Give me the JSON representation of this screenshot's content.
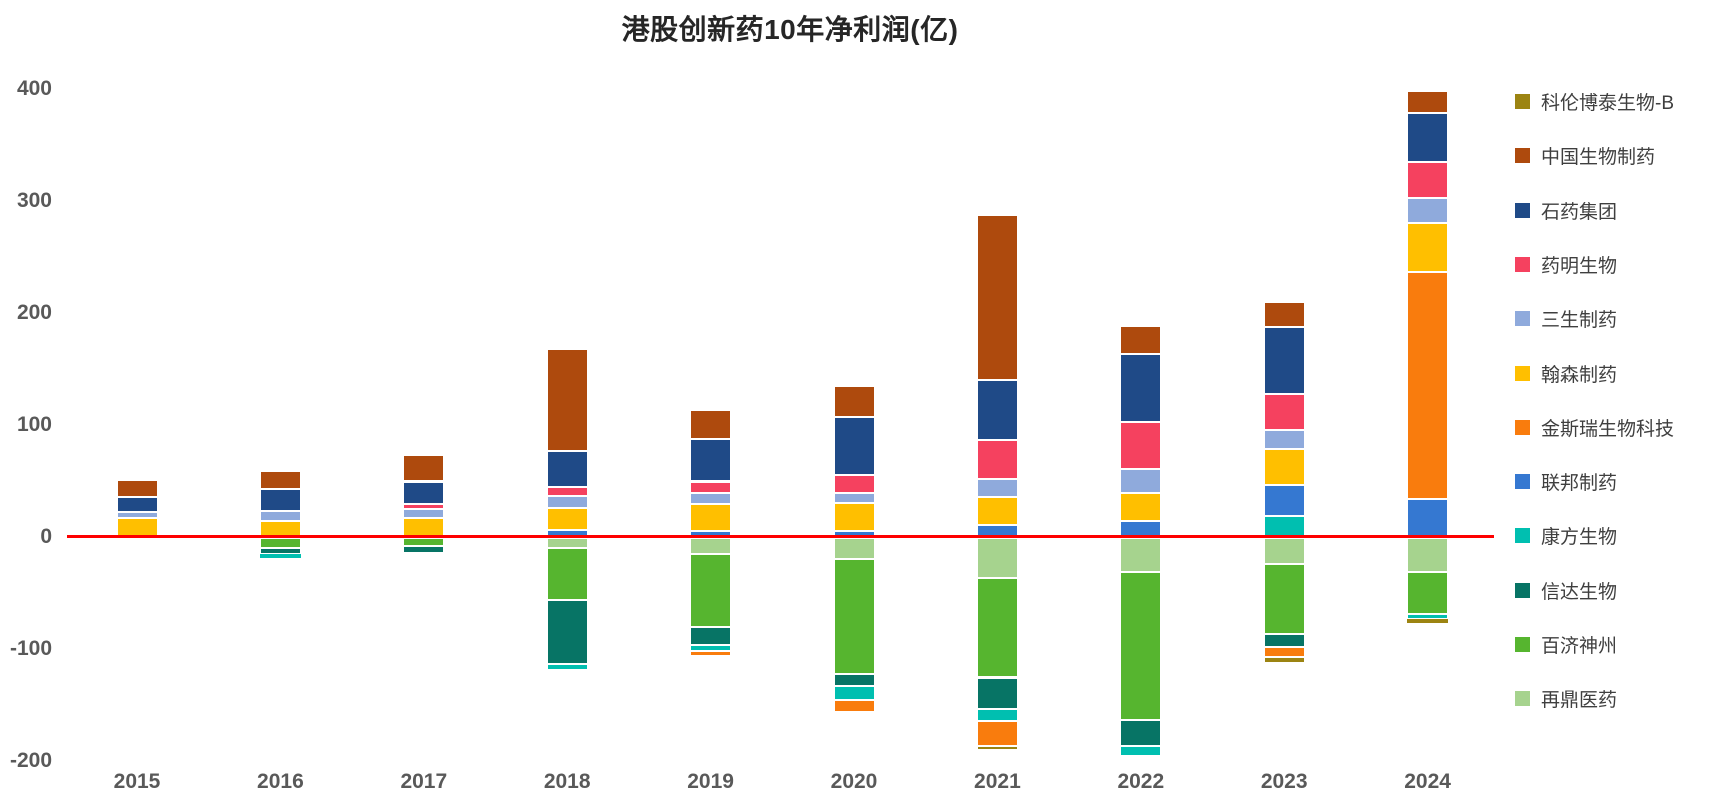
{
  "title": "港股创新药10年净利润(亿)",
  "colors": {
    "background": "#FFFFFF",
    "zero_line": "#FE0000",
    "title_text": "#262626",
    "axis_text": "#595959",
    "legend_text": "#3F3F3F",
    "segment_border": "#FFFFFF"
  },
  "y_axis": {
    "ticks": [
      400,
      300,
      200,
      100,
      0,
      -100,
      -200
    ],
    "min": -200,
    "max": 400
  },
  "legend": [
    {
      "label": "科伦博泰生物-B",
      "color": "#9C8412"
    },
    {
      "label": "中国生物制药",
      "color": "#AE4A0D"
    },
    {
      "label": "石药集团",
      "color": "#1F4A87"
    },
    {
      "label": "药明生物",
      "color": "#F5415F"
    },
    {
      "label": "三生制药",
      "color": "#8FAADC"
    },
    {
      "label": "翰森制药",
      "color": "#FFBF00"
    },
    {
      "label": "金斯瑞生物科技",
      "color": "#F97C0D"
    },
    {
      "label": "联邦制药",
      "color": "#3578D1"
    },
    {
      "label": "康方生物",
      "color": "#00BFB0"
    },
    {
      "label": "信达生物",
      "color": "#077465"
    },
    {
      "label": "百济神州",
      "color": "#56B52F"
    },
    {
      "label": "再鼎医药",
      "color": "#A6D38E"
    }
  ],
  "chart_data": {
    "type": "bar",
    "subtype": "stacked-column",
    "title": "港股创新药10年净利润(亿)",
    "xlabel": "",
    "ylabel": "",
    "ylim": [
      -200,
      400
    ],
    "grid": false,
    "legend_position": "right",
    "categories": [
      "2015",
      "2016",
      "2017",
      "2018",
      "2019",
      "2020",
      "2021",
      "2022",
      "2023",
      "2024"
    ],
    "series": [
      {
        "name": "科伦博泰生物-B",
        "color": "#9C8412",
        "values": [
          0,
          0,
          0,
          0,
          0,
          0,
          -4,
          0,
          -5,
          -3
        ]
      },
      {
        "name": "中国生物制药",
        "color": "#AE4A0D",
        "values": [
          15,
          16,
          24,
          91,
          26,
          27,
          147,
          25,
          22,
          20
        ]
      },
      {
        "name": "石药集团",
        "color": "#1F4A87",
        "values": [
          13,
          20,
          20,
          32,
          38,
          52,
          54,
          61,
          60,
          44
        ]
      },
      {
        "name": "药明生物",
        "color": "#F5415F",
        "values": [
          0,
          0,
          4.5,
          8,
          10,
          16,
          35,
          42,
          32,
          32
        ]
      },
      {
        "name": "三生制药",
        "color": "#8FAADC",
        "values": [
          6,
          8.5,
          8.5,
          11,
          10,
          9,
          16,
          21,
          17,
          22
        ]
      },
      {
        "name": "翰森制药",
        "color": "#FFBF00",
        "values": [
          17,
          15,
          17,
          19,
          24,
          25,
          25,
          25,
          32,
          44
        ]
      },
      {
        "name": "金斯瑞生物科技",
        "color": "#F97C0D",
        "values": [
          0,
          0,
          0,
          0,
          -5,
          -11,
          -22,
          0,
          -9,
          203
        ]
      },
      {
        "name": "联邦制药",
        "color": "#3578D1",
        "values": [
          0,
          0,
          0,
          7,
          6,
          6,
          11,
          15,
          28,
          34
        ]
      },
      {
        "name": "康方生物",
        "color": "#00BFB0",
        "values": [
          0,
          -3,
          0,
          -5,
          -5,
          -12,
          -11,
          -9,
          19,
          -5
        ]
      },
      {
        "name": "信达生物",
        "color": "#077465",
        "values": [
          0,
          -6,
          -6,
          -57,
          -16,
          -11,
          -28,
          -23,
          -12,
          0
        ]
      },
      {
        "name": "百济神州",
        "color": "#56B52F",
        "values": [
          0,
          -9,
          -8,
          -47,
          -65,
          -103,
          -89,
          -132,
          -62,
          -37
        ]
      },
      {
        "name": "再鼎医药",
        "color": "#A6D38E",
        "values": [
          0,
          0,
          0,
          -9,
          -15,
          -19,
          -36,
          -31,
          -24,
          -31
        ]
      }
    ]
  }
}
